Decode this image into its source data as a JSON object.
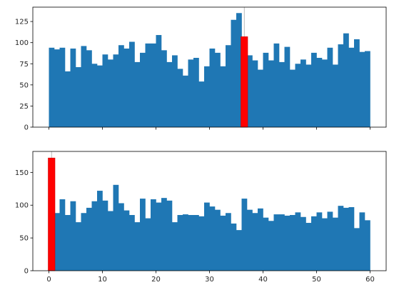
{
  "chart_data": [
    {
      "type": "bar",
      "title": "",
      "xlabel": "",
      "ylabel": "",
      "xlim": [
        -3,
        63
      ],
      "ylim": [
        0,
        142
      ],
      "xticks": [
        0,
        10,
        20,
        30,
        40,
        50,
        60
      ],
      "xtick_labels_visible": false,
      "yticks": [
        0,
        25,
        50,
        75,
        100,
        125
      ],
      "ytick_labels": [
        "0",
        "25",
        "50",
        "75",
        "100",
        "125"
      ],
      "bar_color": "#1f77b4",
      "highlight_color": "#ff0000",
      "highlight_index": 36,
      "marker_line_color": "#aaaaaa",
      "bin_width": 1,
      "bin_start": 0,
      "values": [
        94,
        92,
        94,
        66,
        93,
        71,
        96,
        91,
        75,
        73,
        86,
        80,
        86,
        97,
        93,
        101,
        77,
        88,
        99,
        99,
        109,
        91,
        77,
        85,
        69,
        61,
        80,
        82,
        54,
        72,
        93,
        88,
        72,
        97,
        127,
        135,
        107,
        85,
        79,
        68,
        88,
        79,
        99,
        77,
        95,
        68,
        75,
        80,
        74,
        88,
        82,
        80,
        94,
        74,
        98,
        111,
        94,
        104,
        89,
        90
      ]
    },
    {
      "type": "bar",
      "title": "",
      "xlabel": "",
      "ylabel": "",
      "xlim": [
        -3,
        63
      ],
      "ylim": [
        0,
        182
      ],
      "xticks": [
        0,
        10,
        20,
        30,
        40,
        50,
        60
      ],
      "xtick_labels": [
        "0",
        "10",
        "20",
        "30",
        "40",
        "50",
        "60"
      ],
      "xtick_labels_visible": true,
      "yticks": [
        0,
        50,
        100,
        150
      ],
      "ytick_labels": [
        "0",
        "50",
        "100",
        "150"
      ],
      "bar_color": "#1f77b4",
      "highlight_color": "#ff0000",
      "highlight_index": 0,
      "marker_line_color": "#aaaaaa",
      "bin_width": 1,
      "bin_start": 0,
      "values": [
        172,
        88,
        109,
        85,
        106,
        74,
        88,
        96,
        106,
        122,
        107,
        91,
        131,
        103,
        92,
        85,
        74,
        110,
        80,
        109,
        104,
        111,
        107,
        74,
        85,
        86,
        85,
        85,
        83,
        104,
        98,
        93,
        84,
        88,
        72,
        62,
        110,
        93,
        88,
        95,
        81,
        76,
        86,
        86,
        84,
        85,
        89,
        82,
        73,
        83,
        89,
        80,
        90,
        81,
        99,
        96,
        97,
        65,
        89,
        77
      ]
    }
  ]
}
